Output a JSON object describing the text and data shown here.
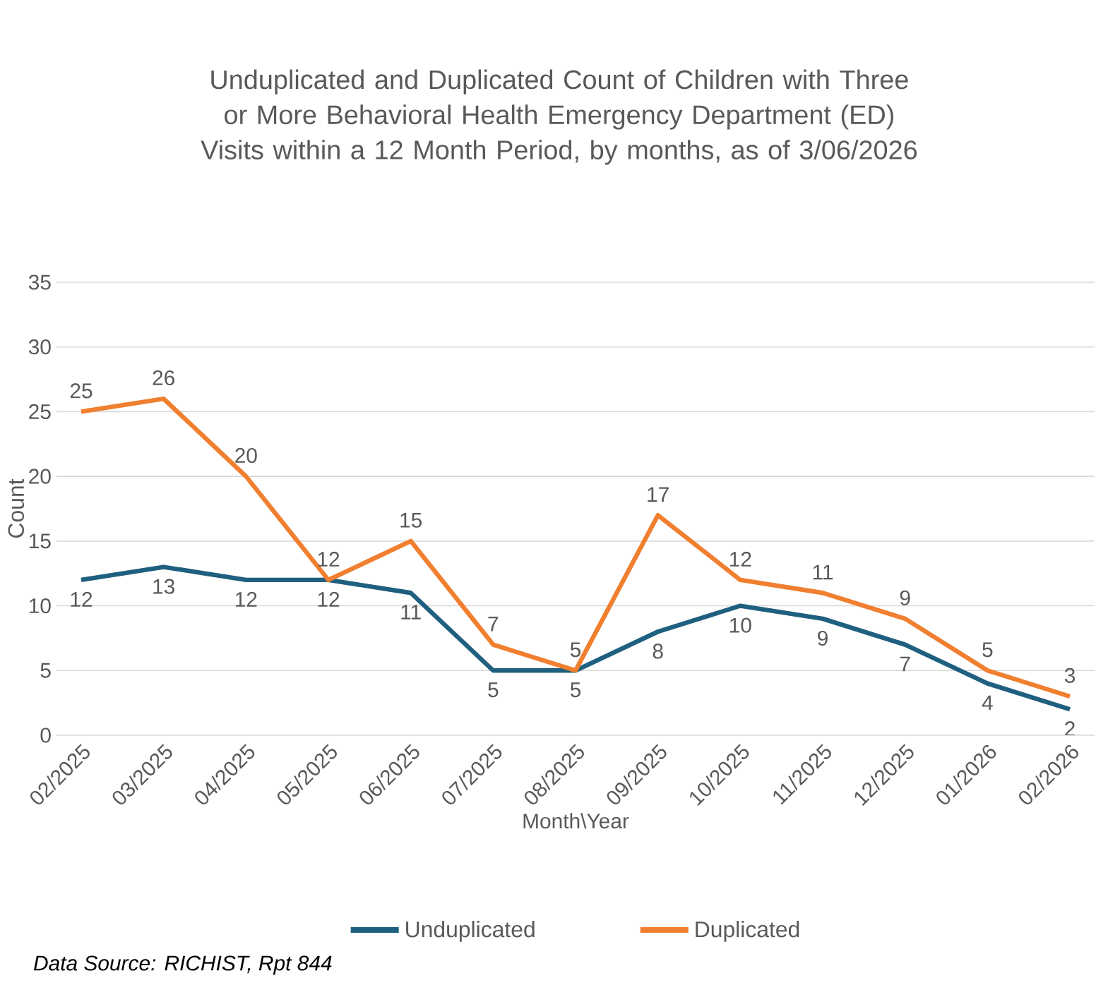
{
  "chart_data": {
    "type": "line",
    "title": "Unduplicated and Duplicated Count of Children with Three or More Behavioral Health Emergency Department (ED) Visits within a 12 Month Period, by months, as of 3/06/2026",
    "xlabel": "Month\\Year",
    "ylabel": "Count",
    "categories": [
      "02/2025",
      "03/2025",
      "04/2025",
      "05/2025",
      "06/2025",
      "07/2025",
      "08/2025",
      "09/2025",
      "10/2025",
      "11/2025",
      "12/2025",
      "01/2026",
      "02/2026"
    ],
    "series": [
      {
        "name": "Unduplicated",
        "color": "#1f5f7f",
        "values": [
          12,
          13,
          12,
          12,
          11,
          5,
          5,
          8,
          10,
          9,
          7,
          4,
          2
        ]
      },
      {
        "name": "Duplicated",
        "color": "#f07f2f",
        "values": [
          25,
          26,
          20,
          12,
          15,
          7,
          5,
          17,
          12,
          11,
          9,
          5,
          3
        ]
      }
    ],
    "ylim": [
      0,
      35
    ],
    "yticks": [
      0,
      5,
      10,
      15,
      20,
      25,
      30,
      35
    ],
    "grid": "y",
    "legend": "bottom",
    "data_labels": true,
    "marker": "none",
    "line_style": "solid",
    "annotations": [
      "Data Source: RICHIST, Rpt 844"
    ]
  }
}
